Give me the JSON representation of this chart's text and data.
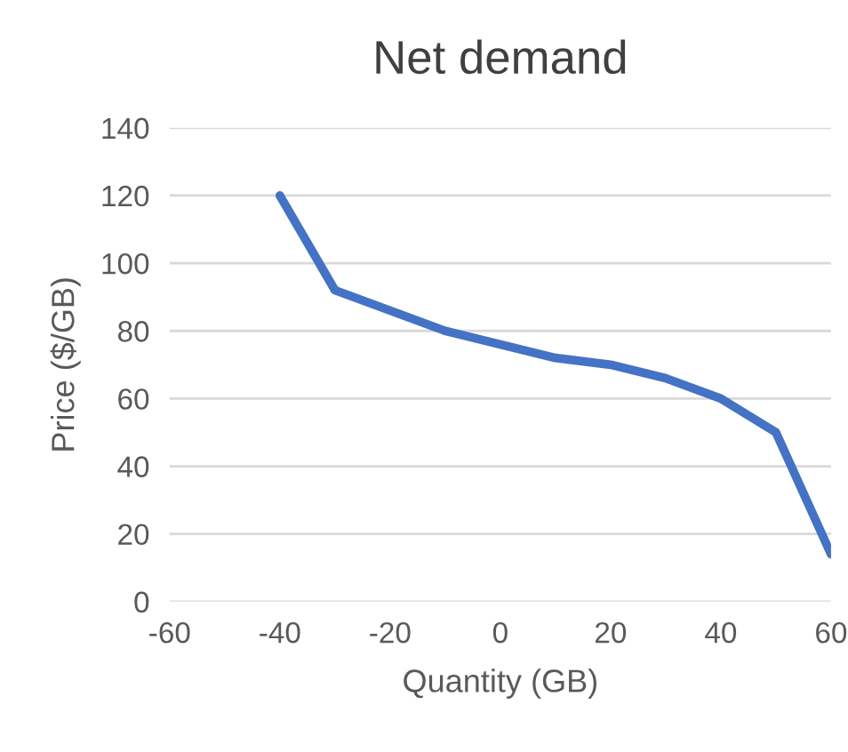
{
  "chart_data": {
    "type": "line",
    "title": "Net demand",
    "xlabel": "Quantity (GB)",
    "ylabel": "Price ($/GB)",
    "x": [
      -40,
      -30,
      -10,
      10,
      20,
      30,
      40,
      50,
      60
    ],
    "series": [
      {
        "color": "#4472c4",
        "values": [
          120,
          92,
          80,
          72,
          70,
          66,
          60,
          50,
          14
        ]
      }
    ],
    "xlim": [
      -60,
      60
    ],
    "xticks": [
      -60,
      -40,
      -20,
      0,
      20,
      40,
      60
    ],
    "ylim": [
      0,
      140
    ],
    "yticks": [
      0,
      20,
      40,
      60,
      80,
      100,
      120,
      140
    ],
    "grid": "y",
    "legend": false,
    "marker": "none",
    "line_style": "solid"
  }
}
